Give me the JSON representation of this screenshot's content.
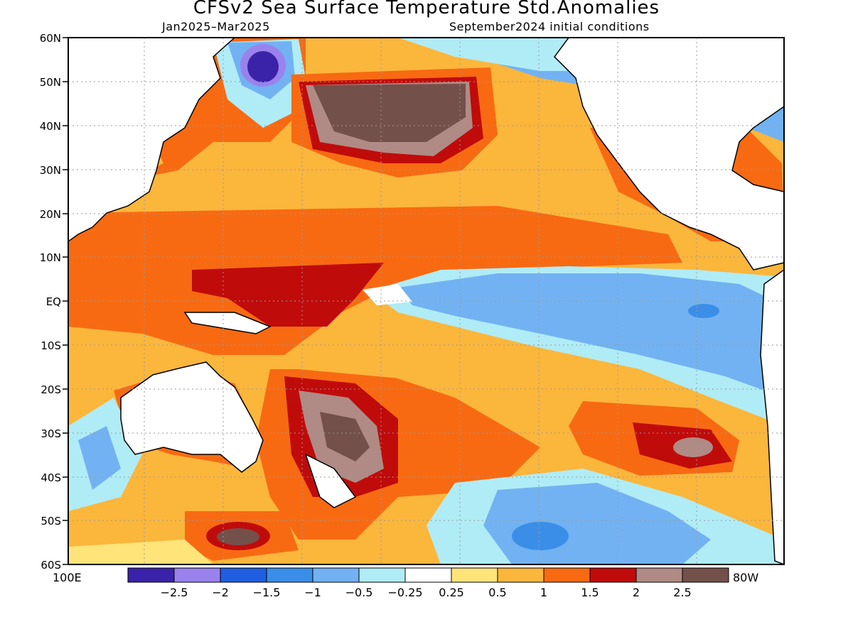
{
  "header": {
    "title": "CFSv2 Sea Surface Temperature Std.Anomalies",
    "period": "Jan2025–Mar2025",
    "initial_conditions": "September2024 initial conditions"
  },
  "map": {
    "projection": "equirectangular",
    "lon_range": [
      "100E",
      "80W"
    ],
    "lat_range": [
      "60S",
      "60N"
    ],
    "lat_labels": [
      "60N",
      "50N",
      "40N",
      "30N",
      "20N",
      "10N",
      "EQ",
      "10S",
      "20S",
      "30S",
      "40S",
      "50S",
      "60S"
    ],
    "lon_edge_labels": {
      "left": "100E",
      "right": "80W"
    },
    "gridlines": "dotted"
  },
  "colorbar": {
    "colors": [
      "#3a23a8",
      "#9a82ee",
      "#1f5ee0",
      "#3a8ee8",
      "#72b2f2",
      "#b0ecf6",
      "#ffffff",
      "#ffe47a",
      "#fbb63c",
      "#f76a12",
      "#c00b0b",
      "#b08a84",
      "#74504a"
    ],
    "tick_labels": [
      "−2.5",
      "−2",
      "−1.5",
      "−1",
      "−0.5",
      "−0.25",
      "0.25",
      "0.5",
      "1",
      "1.5",
      "2",
      "2.5"
    ]
  }
}
